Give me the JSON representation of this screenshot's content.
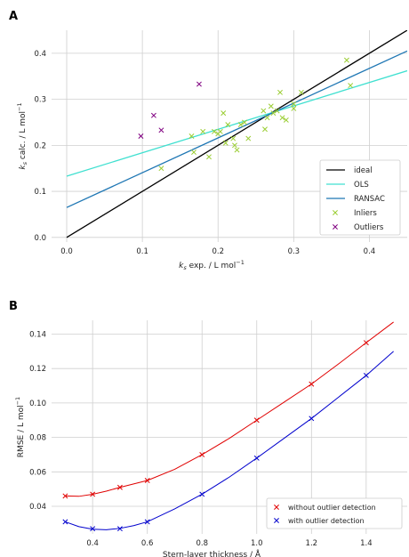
{
  "chart_data": [
    {
      "panel_label": "A",
      "type": "scatter",
      "xlabel_main": "k",
      "xlabel_sub": "s",
      "xlabel_rest": " exp.  / L mol",
      "xlabel_sup": "−1",
      "ylabel_main": "k",
      "ylabel_sub": "s",
      "ylabel_rest": " calc.  / L mol",
      "ylabel_sup": "−1",
      "xlim": [
        -0.02,
        0.45
      ],
      "ylim": [
        -0.01,
        0.45
      ],
      "xticks": [
        0.0,
        0.1,
        0.2,
        0.3,
        0.4
      ],
      "xtick_labels": [
        "0.0",
        "0.1",
        "0.2",
        "0.3",
        "0.4"
      ],
      "yticks": [
        0.0,
        0.1,
        0.2,
        0.3,
        0.4
      ],
      "ytick_labels": [
        "0.0",
        "0.1",
        "0.2",
        "0.3",
        "0.4"
      ],
      "grid": true,
      "legend_position": "lower-right",
      "lines": [
        {
          "name": "ideal",
          "color": "#000000",
          "x": [
            0.0,
            0.45
          ],
          "y": [
            0.0,
            0.45
          ]
        },
        {
          "name": "OLS",
          "color": "#40e0d0",
          "x": [
            0.0,
            0.45
          ],
          "y": [
            0.133,
            0.362
          ]
        },
        {
          "name": "RANSAC",
          "color": "#1f77b4",
          "x": [
            0.0,
            0.45
          ],
          "y": [
            0.065,
            0.405
          ]
        }
      ],
      "scatter": [
        {
          "name": "Inliers",
          "color": "#9acd32",
          "x": [
            0.125,
            0.165,
            0.168,
            0.18,
            0.188,
            0.195,
            0.2,
            0.203,
            0.207,
            0.21,
            0.213,
            0.22,
            0.222,
            0.225,
            0.23,
            0.235,
            0.24,
            0.26,
            0.262,
            0.265,
            0.27,
            0.273,
            0.278,
            0.282,
            0.285,
            0.29,
            0.3,
            0.3,
            0.31,
            0.37,
            0.375
          ],
          "y": [
            0.15,
            0.22,
            0.185,
            0.23,
            0.175,
            0.23,
            0.225,
            0.23,
            0.27,
            0.205,
            0.245,
            0.215,
            0.2,
            0.19,
            0.245,
            0.25,
            0.215,
            0.275,
            0.235,
            0.26,
            0.285,
            0.27,
            0.275,
            0.315,
            0.26,
            0.255,
            0.28,
            0.29,
            0.315,
            0.385,
            0.33
          ]
        },
        {
          "name": "Outliers",
          "color": "#800080",
          "x": [
            0.098,
            0.115,
            0.125,
            0.175
          ],
          "y": [
            0.22,
            0.265,
            0.233,
            0.333
          ]
        }
      ],
      "legend": [
        "ideal",
        "OLS",
        "RANSAC",
        "Inliers",
        "Outliers"
      ]
    },
    {
      "panel_label": "B",
      "type": "line",
      "xlabel": "Stern-layer thickness / Å",
      "ylabel_main": "RMSE / L mol",
      "ylabel_sup": "−1",
      "xlim": [
        0.25,
        1.55
      ],
      "ylim": [
        0.024,
        0.148
      ],
      "xticks": [
        0.4,
        0.6,
        0.8,
        1.0,
        1.2,
        1.4
      ],
      "xtick_labels": [
        "0.4",
        "0.6",
        "0.8",
        "1.0",
        "1.2",
        "1.4"
      ],
      "yticks": [
        0.04,
        0.06,
        0.08,
        0.1,
        0.12,
        0.14
      ],
      "ytick_labels": [
        "0.04",
        "0.06",
        "0.08",
        "0.10",
        "0.12",
        "0.14"
      ],
      "grid": true,
      "legend_position": "lower-right",
      "series": [
        {
          "name": "without outlier detection",
          "color": "#e00000",
          "x": [
            0.3,
            0.4,
            0.5,
            0.6,
            0.8,
            1.0,
            1.2,
            1.4
          ],
          "y": [
            0.046,
            0.047,
            0.051,
            0.055,
            0.07,
            0.09,
            0.111,
            0.135
          ],
          "curve_x": [
            0.3,
            0.35,
            0.4,
            0.45,
            0.5,
            0.6,
            0.7,
            0.8,
            0.9,
            1.0,
            1.1,
            1.2,
            1.3,
            1.4,
            1.5
          ],
          "curve_y": [
            0.046,
            0.0458,
            0.047,
            0.0488,
            0.051,
            0.055,
            0.0615,
            0.07,
            0.0795,
            0.09,
            0.1005,
            0.111,
            0.1228,
            0.135,
            0.147
          ]
        },
        {
          "name": "with outlier detection",
          "color": "#0000cd",
          "x": [
            0.3,
            0.4,
            0.5,
            0.6,
            0.8,
            1.0,
            1.2,
            1.4
          ],
          "y": [
            0.031,
            0.027,
            0.027,
            0.031,
            0.047,
            0.068,
            0.091,
            0.116
          ],
          "curve_x": [
            0.3,
            0.35,
            0.4,
            0.45,
            0.5,
            0.55,
            0.6,
            0.7,
            0.8,
            0.9,
            1.0,
            1.1,
            1.2,
            1.3,
            1.4,
            1.5
          ],
          "curve_y": [
            0.031,
            0.0282,
            0.0267,
            0.0264,
            0.0272,
            0.0288,
            0.031,
            0.0385,
            0.047,
            0.057,
            0.068,
            0.0795,
            0.091,
            0.1035,
            0.116,
            0.13
          ]
        }
      ]
    }
  ]
}
